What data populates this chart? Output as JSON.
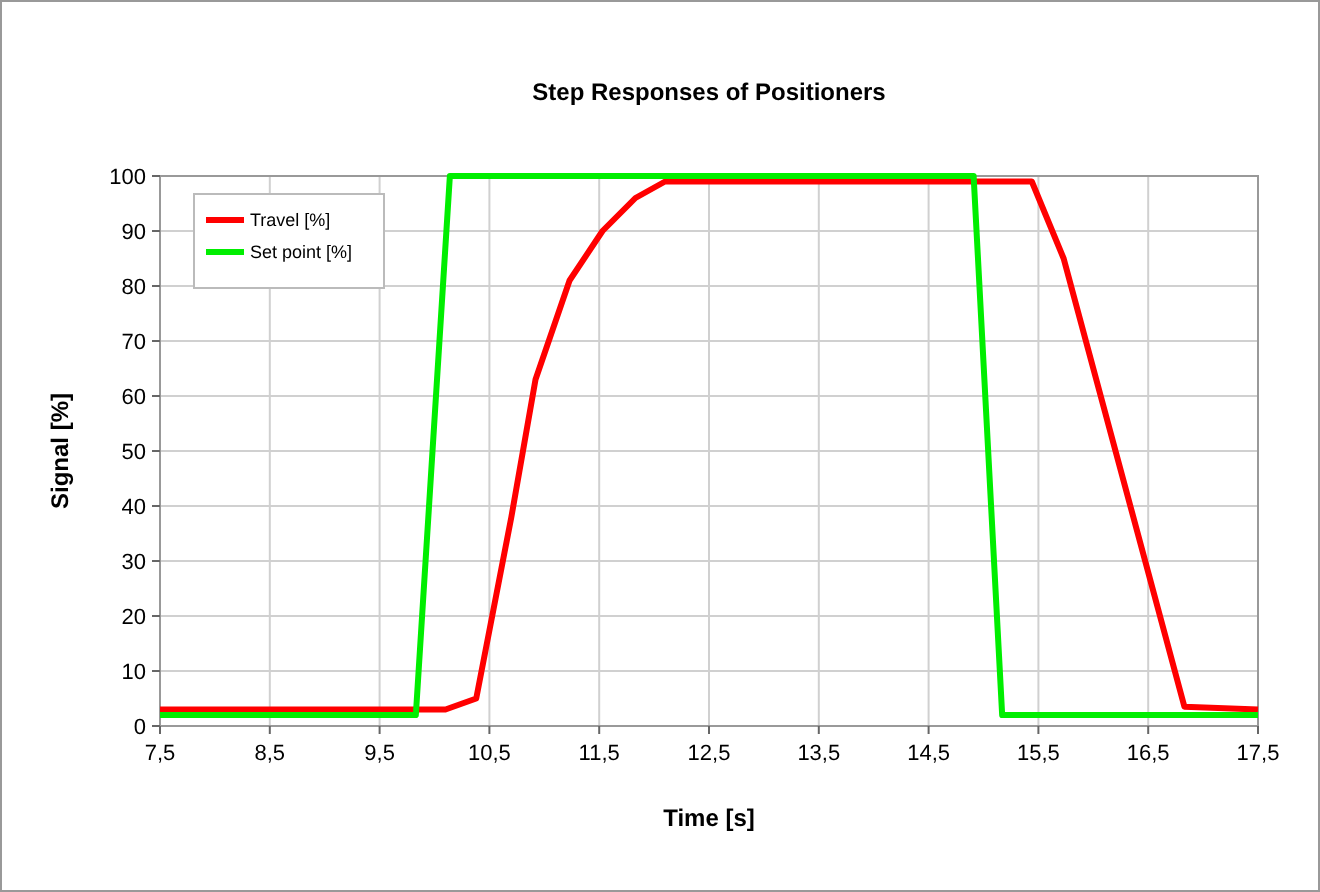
{
  "chart_data": {
    "type": "line",
    "title": "Step Responses of Positioners",
    "xlabel": "Time [s]",
    "ylabel": "Signal [%]",
    "xlim": [
      7.5,
      17.5
    ],
    "xticks": [
      {
        "value": 7.5,
        "label": "7,5"
      },
      {
        "value": 8.5,
        "label": "8,5"
      },
      {
        "value": 9.5,
        "label": "9,5"
      },
      {
        "value": 10.5,
        "label": "10,5"
      },
      {
        "value": 11.5,
        "label": "11,5"
      },
      {
        "value": 12.5,
        "label": "12,5"
      },
      {
        "value": 13.5,
        "label": "13,5"
      },
      {
        "value": 14.5,
        "label": "14,5"
      },
      {
        "value": 15.5,
        "label": "15,5"
      },
      {
        "value": 16.5,
        "label": "16,5"
      },
      {
        "value": 17.5,
        "label": "17,5"
      }
    ],
    "ylim": [
      0,
      100
    ],
    "yticks": [
      0,
      10,
      20,
      30,
      40,
      50,
      60,
      70,
      80,
      90,
      100
    ],
    "grid": true,
    "legend": "top left",
    "marker": "none",
    "line_style": "solid",
    "series": [
      {
        "name": "Travel [%]",
        "color": "#ff0000",
        "x": [
          7.5,
          10.1,
          10.38,
          10.7,
          10.92,
          11.23,
          11.53,
          11.83,
          12.1,
          15.44,
          15.73,
          16.83,
          17.5
        ],
        "values": [
          3,
          3,
          5,
          38,
          63,
          81,
          90,
          96,
          99,
          99,
          85,
          3.5,
          3
        ]
      },
      {
        "name": "Set point [%]",
        "color": "#00ee00",
        "x": [
          7.5,
          9.83,
          10.14,
          14.91,
          15.17,
          17.5
        ],
        "values": [
          2,
          2,
          100,
          100,
          2,
          2
        ]
      }
    ]
  }
}
